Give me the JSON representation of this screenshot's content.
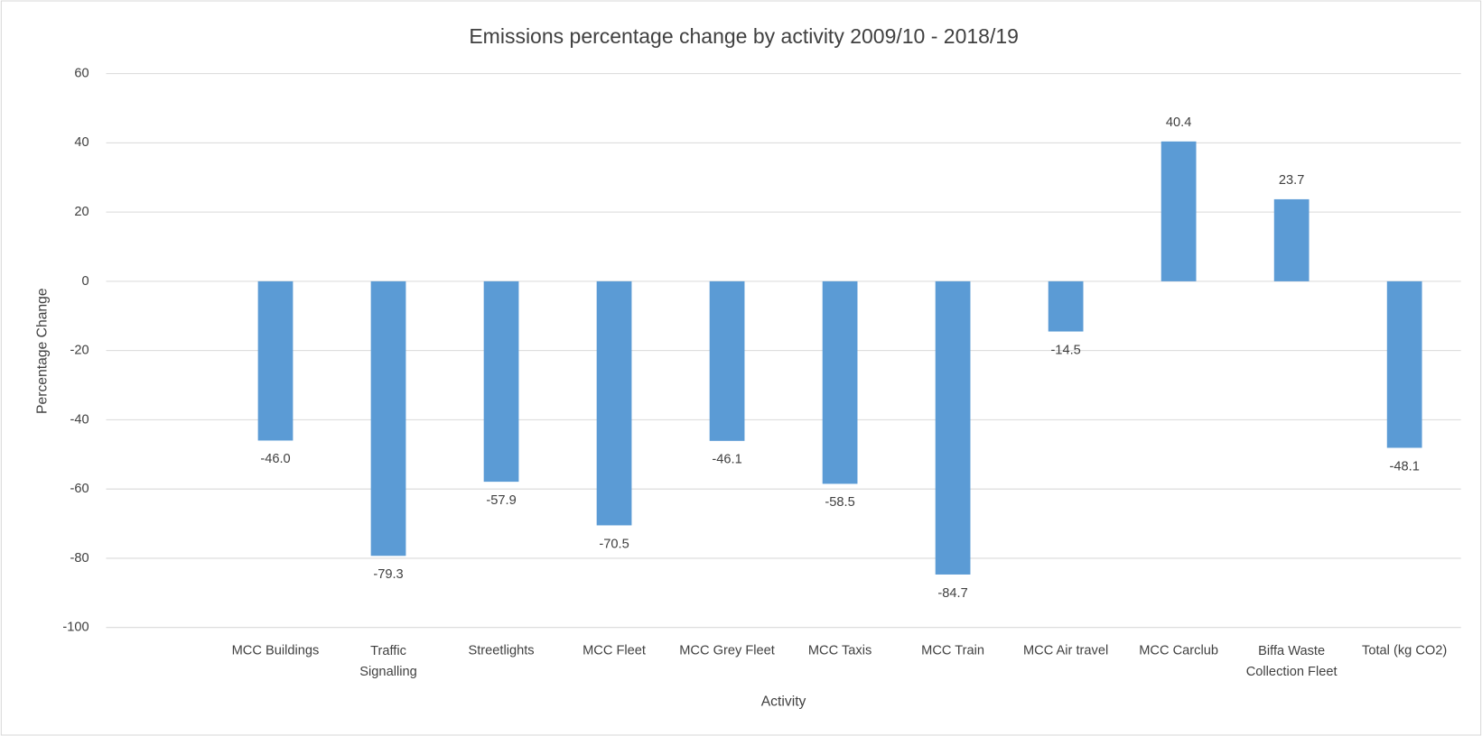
{
  "chart_data": {
    "type": "bar",
    "title": "Emissions percentage change by activity 2009/10 - 2018/19",
    "x_label": "Activity",
    "y_label": "Percentage Change",
    "categories": [
      null,
      "MCC Buildings",
      "Traffic Signalling",
      "Streetlights",
      "MCC Fleet",
      "MCC Grey Fleet",
      "MCC Taxis",
      "MCC Train",
      "MCC Air travel",
      "MCC Carclub",
      "Biffa Waste Collection Fleet",
      "Total (kg CO2)"
    ],
    "values": [
      null,
      -46.0,
      -79.3,
      -57.9,
      -70.5,
      -46.1,
      -58.5,
      -84.7,
      -14.5,
      40.4,
      23.7,
      -48.1
    ],
    "value_labels": [
      null,
      "-46.0",
      "-79.3",
      "-57.9",
      "-70.5",
      "-46.1",
      "-58.5",
      "-84.7",
      "-14.5",
      "40.4",
      "23.7",
      "-48.1"
    ],
    "color": "#5b9bd5",
    "ylim": [
      -100,
      60
    ],
    "yticks": [
      -100,
      -80,
      -60,
      -40,
      -20,
      0,
      20,
      40,
      60
    ],
    "grid": true
  }
}
